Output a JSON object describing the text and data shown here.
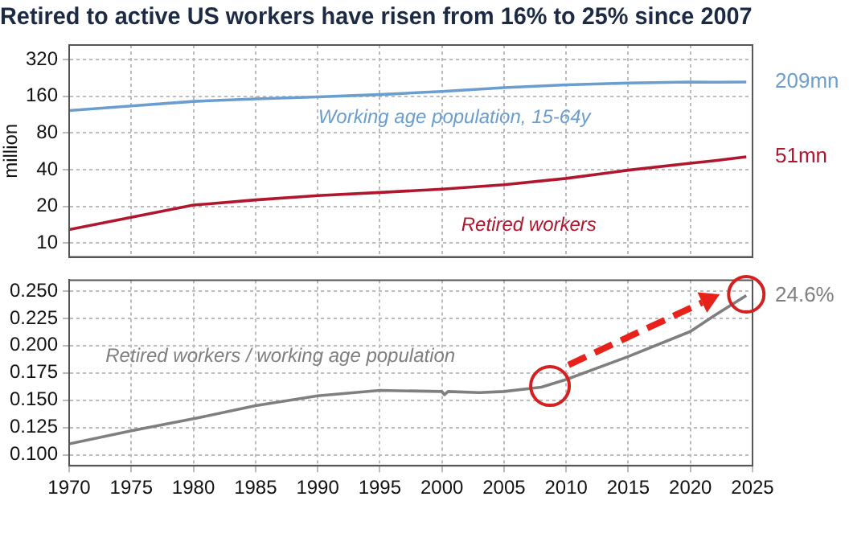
{
  "chart_data": [
    {
      "type": "line",
      "title": "Retired to active US workers have risen from 16% to 25% since 2007",
      "ylabel": "million",
      "x": [
        1970,
        1975,
        1980,
        1985,
        1990,
        1995,
        2000,
        2005,
        2010,
        2015,
        2020,
        2022,
        2024.5
      ],
      "log": "y",
      "xlim": [
        1970,
        2025
      ],
      "xticks": [
        1970,
        1975,
        1980,
        1985,
        1990,
        1995,
        2000,
        2005,
        2010,
        2015,
        2020,
        2025
      ],
      "ylim": [
        7.7,
        420
      ],
      "yticks": [
        10,
        20,
        40,
        80,
        160,
        320
      ],
      "tick_labels": "y",
      "grid": true,
      "legend": false,
      "marker": "none",
      "line_style": "solid",
      "series": [
        {
          "name": "Working age population, 15-64y",
          "color": "#6a9ed0",
          "values": [
            122,
            133,
            145,
            152,
            158,
            165,
            175,
            188,
            198,
            205,
            209,
            208,
            209
          ],
          "value_labels": [
            null,
            null,
            null,
            null,
            null,
            null,
            null,
            null,
            null,
            null,
            null,
            null,
            "209mn"
          ]
        },
        {
          "name": "Retired workers",
          "color": "#b0162e",
          "values": [
            12.9,
            16.3,
            20.5,
            22.6,
            24.5,
            26,
            27.7,
            30.1,
            33.9,
            39.6,
            45.2,
            47.5,
            51
          ],
          "value_labels": [
            null,
            null,
            null,
            null,
            null,
            null,
            null,
            null,
            null,
            null,
            null,
            null,
            "51mn"
          ]
        }
      ]
    },
    {
      "type": "line",
      "x": [
        1970,
        1975,
        1980,
        1985,
        1990,
        1995,
        2000,
        2000.2,
        2000.5,
        2003,
        2005,
        2008,
        2010,
        2015,
        2020,
        2022,
        2024.5
      ],
      "xlim": [
        1970,
        2025
      ],
      "xticks": [
        1970,
        1975,
        1980,
        1985,
        1990,
        1995,
        2000,
        2005,
        2010,
        2015,
        2020,
        2025
      ],
      "ylim": [
        0.09,
        0.26
      ],
      "yticks": [
        {
          "value": 0.1,
          "label": "0.100"
        },
        {
          "value": 0.125,
          "label": "0.125"
        },
        {
          "value": 0.15,
          "label": "0.150"
        },
        {
          "value": 0.175,
          "label": "0.175"
        },
        {
          "value": 0.2,
          "label": "0.200"
        },
        {
          "value": 0.225,
          "label": "0.225"
        },
        {
          "value": 0.25,
          "label": "0.250"
        }
      ],
      "grid": true,
      "legend": false,
      "marker": "none",
      "line_style": "solid",
      "series": [
        {
          "name": "Retired workers / working age population",
          "color": "#7f7f7f",
          "values": [
            0.11,
            0.122,
            0.133,
            0.145,
            0.154,
            0.159,
            0.158,
            0.155,
            0.158,
            0.157,
            0.158,
            0.162,
            0.169,
            0.19,
            0.213,
            0.228,
            0.246
          ],
          "value_labels": [
            null,
            null,
            null,
            null,
            null,
            null,
            null,
            null,
            null,
            null,
            null,
            null,
            null,
            null,
            null,
            null,
            "24.6%"
          ]
        }
      ]
    }
  ]
}
